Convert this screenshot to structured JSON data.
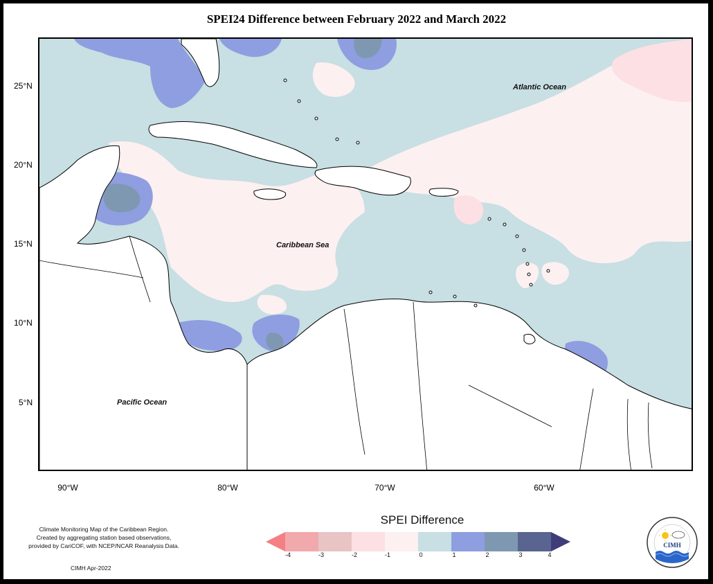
{
  "title": "SPEI24 Difference between February 2022 and March 2022",
  "map": {
    "lat_ticks": [
      "25°N",
      "20°N",
      "15°N",
      "10°N",
      "5°N"
    ],
    "lon_ticks": [
      "90°W",
      "80°W",
      "70°W",
      "60°W"
    ],
    "labels": {
      "atlantic": "Atlantic Ocean",
      "caribbean": "Caribbean Sea",
      "pacific": "Pacific Ocean"
    }
  },
  "footnote": {
    "line1": "Climate Monitoring Map of the Caribbean Region.",
    "line2": "Created by aggregating station based observations,",
    "line3": "provided by CariCOF, with NCEP/NCAR Reanalysis Data."
  },
  "credit": "CIMH Apr-2022",
  "legend": {
    "title": "SPEI Difference",
    "ticks": [
      "-4",
      "-3",
      "-2",
      "-1",
      "0",
      "1",
      "2",
      "3",
      "4"
    ],
    "colors": [
      "#f47f85",
      "#f1a9ac",
      "#e8c4c5",
      "#fde0e4",
      "#fdf0f0",
      "#c8dfe3",
      "#8f9ee0",
      "#7e98b2",
      "#5a6490",
      "#3e3d7a"
    ]
  },
  "logo": {
    "text": "CIMH"
  }
}
